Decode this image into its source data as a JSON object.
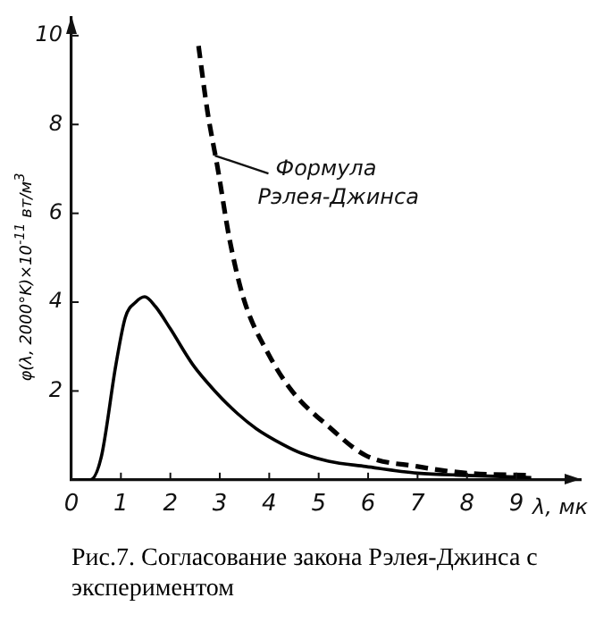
{
  "chart_data": {
    "type": "line",
    "xlabel": "λ, мк",
    "ylabel": "φ(λ, 2000°K)×10$^{-11}$ вт/м$^{3}$",
    "xlim": [
      0,
      10.3
    ],
    "ylim": [
      0,
      10.4
    ],
    "xticks": [
      0,
      1,
      2,
      3,
      4,
      5,
      6,
      7,
      8,
      9
    ],
    "yticks": [
      {
        "value": 0,
        "label": null
      },
      2,
      4,
      6,
      8,
      10
    ],
    "grid": false,
    "legend": false,
    "marker": "none",
    "series": [
      {
        "color": "#000000",
        "line_style": "solid",
        "x": [
          0,
          0.38,
          0.6,
          0.9,
          1.09,
          1.3,
          1.48,
          1.7,
          2.0,
          2.45,
          2.9,
          3.35,
          3.74,
          4.27,
          4.65,
          5.2,
          5.95,
          7,
          8,
          9.3
        ],
        "values": [
          0,
          0,
          0.5,
          2.6,
          3.66,
          4.0,
          4.12,
          3.9,
          3.4,
          2.6,
          2.0,
          1.5,
          1.15,
          0.8,
          0.6,
          0.42,
          0.3,
          0.15,
          0.1,
          0.05
        ]
      },
      {
        "color": "#000000",
        "line_style": "dashed",
        "x": [
          2.57,
          2.75,
          2.96,
          3.2,
          3.49,
          4.0,
          4.46,
          5.2,
          5.95,
          7,
          8,
          9.3
        ],
        "values": [
          9.77,
          8.3,
          7.0,
          5.4,
          4.05,
          2.8,
          2.0,
          1.2,
          0.55,
          0.3,
          0.15,
          0.1
        ]
      }
    ],
    "annotations": [
      {
        "text": "Формула Рэлея-Джинса",
        "x": 2.9,
        "y": 7.3
      },
      "Рис.7. Согласование закона Рэлея-Джинса с экспериментом"
    ]
  }
}
